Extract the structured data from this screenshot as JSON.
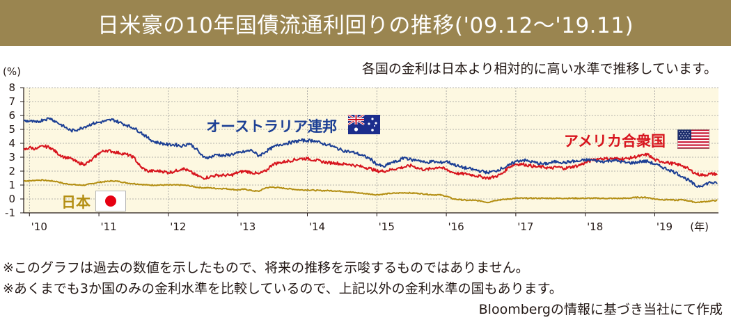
{
  "header": {
    "title": "日米豪の10年国債流通利回りの推移('09.12〜'19.11)"
  },
  "subtitle": "各国の金利は日本より相対的に高い水準で推移しています。",
  "notes": [
    "※このグラフは過去の数値を示したもので、将来の推移を示唆するものではありません。",
    "※あくまでも3か国のみの金利水準を比較しているので、上記以外の金利水準の国もあります。"
  ],
  "source": "Bloombergの情報に基づき当社にて作成",
  "colors": {
    "title_bg": "#9a8550",
    "plot_bg": "#fdf8e1",
    "australia": "#1c3f94",
    "usa": "#d7141d",
    "japan": "#b38e12"
  },
  "chart_data": {
    "type": "line",
    "title": "日米豪の10年国債流通利回りの推移('09.12〜'19.11)",
    "ylabel": "(%)",
    "xlabel": "(年)",
    "ylim": [
      -1,
      8
    ],
    "xlim": [
      2009.917,
      2019.917
    ],
    "yticks": [
      "-1",
      "0",
      "1",
      "2",
      "3",
      "4",
      "5",
      "6",
      "7",
      "8"
    ],
    "xticks": [
      {
        "value": 2010,
        "label": "'10"
      },
      {
        "value": 2011,
        "label": "'11"
      },
      {
        "value": 2012,
        "label": "'12"
      },
      {
        "value": 2013,
        "label": "'13"
      },
      {
        "value": 2014,
        "label": "'14"
      },
      {
        "value": 2015,
        "label": "'15"
      },
      {
        "value": 2016,
        "label": "'16"
      },
      {
        "value": 2017,
        "label": "'17"
      },
      {
        "value": 2018,
        "label": "'18"
      },
      {
        "value": 2019,
        "label": "'19"
      }
    ],
    "grid": true,
    "series": [
      {
        "name": "オーストラリア連邦",
        "color": "#1c3f94",
        "flag": "australia-flag",
        "x": [
          2009.92,
          2010.0,
          2010.1,
          2010.2,
          2010.3,
          2010.4,
          2010.5,
          2010.6,
          2010.7,
          2010.8,
          2010.9,
          2011.0,
          2011.1,
          2011.2,
          2011.3,
          2011.4,
          2011.5,
          2011.6,
          2011.7,
          2011.8,
          2011.9,
          2012.0,
          2012.1,
          2012.2,
          2012.3,
          2012.4,
          2012.5,
          2012.6,
          2012.7,
          2012.8,
          2012.9,
          2013.0,
          2013.1,
          2013.2,
          2013.3,
          2013.4,
          2013.5,
          2013.6,
          2013.7,
          2013.8,
          2013.9,
          2014.0,
          2014.1,
          2014.2,
          2014.3,
          2014.4,
          2014.5,
          2014.6,
          2014.7,
          2014.8,
          2014.9,
          2015.0,
          2015.1,
          2015.2,
          2015.3,
          2015.4,
          2015.5,
          2015.6,
          2015.7,
          2015.8,
          2015.9,
          2016.0,
          2016.1,
          2016.2,
          2016.3,
          2016.4,
          2016.5,
          2016.6,
          2016.7,
          2016.8,
          2016.9,
          2017.0,
          2017.1,
          2017.2,
          2017.3,
          2017.4,
          2017.5,
          2017.6,
          2017.7,
          2017.8,
          2017.9,
          2018.0,
          2018.1,
          2018.2,
          2018.3,
          2018.4,
          2018.5,
          2018.6,
          2018.7,
          2018.8,
          2018.9,
          2019.0,
          2019.1,
          2019.2,
          2019.3,
          2019.4,
          2019.5,
          2019.6,
          2019.7,
          2019.8,
          2019.9
        ],
        "values": [
          5.6,
          5.6,
          5.5,
          5.7,
          5.8,
          5.5,
          5.2,
          4.9,
          5.0,
          5.2,
          5.4,
          5.5,
          5.6,
          5.7,
          5.5,
          5.3,
          5.1,
          4.8,
          4.4,
          4.1,
          4.0,
          3.9,
          3.9,
          3.8,
          4.0,
          3.6,
          3.0,
          3.0,
          3.2,
          3.1,
          3.2,
          3.3,
          3.4,
          3.5,
          3.1,
          3.4,
          3.7,
          3.9,
          4.0,
          4.1,
          4.2,
          4.2,
          4.2,
          4.0,
          3.9,
          3.7,
          3.5,
          3.4,
          3.3,
          3.1,
          2.9,
          2.5,
          2.3,
          2.6,
          2.7,
          3.0,
          2.8,
          2.8,
          2.6,
          2.7,
          2.6,
          2.7,
          2.5,
          2.3,
          2.2,
          2.1,
          2.0,
          1.9,
          2.0,
          2.2,
          2.4,
          2.7,
          2.8,
          2.7,
          2.6,
          2.5,
          2.6,
          2.7,
          2.6,
          2.7,
          2.7,
          2.8,
          2.8,
          2.7,
          2.7,
          2.8,
          2.7,
          2.6,
          2.6,
          2.7,
          2.7,
          2.5,
          2.3,
          2.1,
          1.9,
          1.6,
          1.3,
          0.9,
          1.0,
          1.2,
          1.1
        ]
      },
      {
        "name": "アメリカ合衆国",
        "color": "#d7141d",
        "flag": "usa-flag",
        "x": [
          2009.92,
          2010.0,
          2010.1,
          2010.2,
          2010.3,
          2010.4,
          2010.5,
          2010.6,
          2010.7,
          2010.8,
          2010.9,
          2011.0,
          2011.1,
          2011.2,
          2011.3,
          2011.4,
          2011.5,
          2011.6,
          2011.7,
          2011.8,
          2011.9,
          2012.0,
          2012.1,
          2012.2,
          2012.3,
          2012.4,
          2012.5,
          2012.6,
          2012.7,
          2012.8,
          2012.9,
          2013.0,
          2013.1,
          2013.2,
          2013.3,
          2013.4,
          2013.5,
          2013.6,
          2013.7,
          2013.8,
          2013.9,
          2014.0,
          2014.1,
          2014.2,
          2014.3,
          2014.4,
          2014.5,
          2014.6,
          2014.7,
          2014.8,
          2014.9,
          2015.0,
          2015.1,
          2015.2,
          2015.3,
          2015.4,
          2015.5,
          2015.6,
          2015.7,
          2015.8,
          2015.9,
          2016.0,
          2016.1,
          2016.2,
          2016.3,
          2016.4,
          2016.5,
          2016.6,
          2016.7,
          2016.8,
          2016.9,
          2017.0,
          2017.1,
          2017.2,
          2017.3,
          2017.4,
          2017.5,
          2017.6,
          2017.7,
          2017.8,
          2017.9,
          2018.0,
          2018.1,
          2018.2,
          2018.3,
          2018.4,
          2018.5,
          2018.6,
          2018.7,
          2018.8,
          2018.9,
          2019.0,
          2019.1,
          2019.2,
          2019.3,
          2019.4,
          2019.5,
          2019.6,
          2019.7,
          2019.8,
          2019.9
        ],
        "values": [
          3.5,
          3.7,
          3.6,
          3.8,
          3.7,
          3.3,
          3.0,
          2.9,
          2.6,
          2.5,
          2.8,
          3.3,
          3.5,
          3.4,
          3.3,
          3.2,
          3.0,
          2.3,
          2.0,
          2.0,
          2.0,
          1.9,
          2.0,
          2.2,
          2.0,
          1.7,
          1.5,
          1.6,
          1.7,
          1.7,
          1.7,
          1.9,
          2.0,
          1.9,
          1.8,
          2.0,
          2.5,
          2.6,
          2.7,
          2.8,
          2.9,
          2.9,
          2.8,
          2.7,
          2.6,
          2.6,
          2.5,
          2.5,
          2.4,
          2.3,
          2.2,
          2.0,
          2.0,
          2.1,
          2.2,
          2.3,
          2.4,
          2.2,
          2.1,
          2.2,
          2.3,
          2.1,
          1.9,
          1.8,
          1.8,
          1.7,
          1.6,
          1.5,
          1.6,
          1.8,
          2.3,
          2.5,
          2.5,
          2.4,
          2.3,
          2.3,
          2.2,
          2.3,
          2.2,
          2.3,
          2.4,
          2.6,
          2.8,
          2.9,
          2.9,
          2.9,
          2.9,
          2.9,
          3.0,
          3.1,
          3.2,
          2.8,
          2.7,
          2.6,
          2.5,
          2.4,
          2.1,
          1.8,
          1.7,
          1.8,
          1.8
        ]
      },
      {
        "name": "日本",
        "color": "#b38e12",
        "flag": "japan-flag",
        "x": [
          2009.92,
          2010.0,
          2010.1,
          2010.2,
          2010.3,
          2010.4,
          2010.5,
          2010.6,
          2010.7,
          2010.8,
          2010.9,
          2011.0,
          2011.1,
          2011.2,
          2011.3,
          2011.4,
          2011.5,
          2011.6,
          2011.7,
          2011.8,
          2011.9,
          2012.0,
          2012.1,
          2012.2,
          2012.3,
          2012.4,
          2012.5,
          2012.6,
          2012.7,
          2012.8,
          2012.9,
          2013.0,
          2013.1,
          2013.2,
          2013.3,
          2013.4,
          2013.5,
          2013.6,
          2013.7,
          2013.8,
          2013.9,
          2014.0,
          2014.1,
          2014.2,
          2014.3,
          2014.4,
          2014.5,
          2014.6,
          2014.7,
          2014.8,
          2014.9,
          2015.0,
          2015.1,
          2015.2,
          2015.3,
          2015.4,
          2015.5,
          2015.6,
          2015.7,
          2015.8,
          2015.9,
          2016.0,
          2016.1,
          2016.2,
          2016.3,
          2016.4,
          2016.5,
          2016.6,
          2016.7,
          2016.8,
          2016.9,
          2017.0,
          2017.1,
          2017.2,
          2017.3,
          2017.4,
          2017.5,
          2017.6,
          2017.7,
          2017.8,
          2017.9,
          2018.0,
          2018.1,
          2018.2,
          2018.3,
          2018.4,
          2018.5,
          2018.6,
          2018.7,
          2018.8,
          2018.9,
          2019.0,
          2019.1,
          2019.2,
          2019.3,
          2019.4,
          2019.5,
          2019.6,
          2019.7,
          2019.8,
          2019.9
        ],
        "values": [
          1.3,
          1.3,
          1.35,
          1.35,
          1.3,
          1.25,
          1.1,
          1.05,
          1.0,
          1.0,
          1.1,
          1.2,
          1.25,
          1.3,
          1.25,
          1.15,
          1.1,
          1.05,
          1.0,
          1.0,
          1.0,
          1.0,
          1.0,
          1.0,
          0.95,
          0.85,
          0.8,
          0.8,
          0.75,
          0.75,
          0.7,
          0.65,
          0.7,
          0.6,
          0.55,
          0.8,
          0.85,
          0.8,
          0.75,
          0.7,
          0.65,
          0.65,
          0.62,
          0.6,
          0.6,
          0.58,
          0.55,
          0.5,
          0.45,
          0.4,
          0.35,
          0.3,
          0.35,
          0.4,
          0.42,
          0.45,
          0.42,
          0.4,
          0.35,
          0.3,
          0.3,
          0.2,
          0.0,
          -0.05,
          -0.1,
          -0.1,
          -0.15,
          -0.25,
          -0.1,
          -0.05,
          0.0,
          0.05,
          0.05,
          0.05,
          0.05,
          0.05,
          0.05,
          0.05,
          0.05,
          0.05,
          0.05,
          0.05,
          0.05,
          0.05,
          0.04,
          0.04,
          0.04,
          0.05,
          0.1,
          0.12,
          0.1,
          0.0,
          -0.05,
          -0.05,
          -0.1,
          -0.05,
          -0.15,
          -0.25,
          -0.2,
          -0.15,
          -0.1
        ]
      }
    ]
  }
}
